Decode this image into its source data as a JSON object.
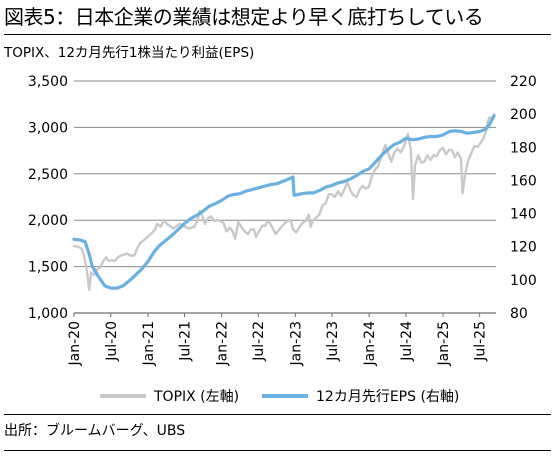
{
  "header": {
    "title": "図表5：日本企業の業績は想定より早く底打ちしている",
    "subtitle": "TOPIX、12カ月先行1株当たり利益(EPS)"
  },
  "footer": {
    "source": "出所：ブルームバーグ、UBS"
  },
  "chart_data": {
    "type": "line",
    "title": "",
    "xlabel": "",
    "ylabel_left": "",
    "ylabel_right": "",
    "x_ticks": [
      "Jan-20",
      "Jul-20",
      "Jan-21",
      "Jul-21",
      "Jan-22",
      "Jul-22",
      "Jan-23",
      "Jul-23",
      "Jan-24",
      "Jul-24",
      "Jan-25",
      "Jul-25"
    ],
    "y_left": {
      "min": 1000,
      "max": 3500,
      "ticks": [
        "1,000",
        "1,500",
        "2,000",
        "2,500",
        "3,000",
        "3,500"
      ]
    },
    "y_right": {
      "min": 80,
      "max": 220,
      "ticks": [
        "80",
        "100",
        "120",
        "140",
        "160",
        "180",
        "200",
        "220"
      ]
    },
    "grid": "horizontal",
    "legend_position": "bottom",
    "series": [
      {
        "name": "TOPIX (左軸)",
        "axis": "left",
        "color": "#c9c9c9",
        "points": [
          [
            "2020-01-01",
            1720
          ],
          [
            "2020-01-20",
            1715
          ],
          [
            "2020-02-10",
            1690
          ],
          [
            "2020-02-25",
            1560
          ],
          [
            "2020-03-05",
            1460
          ],
          [
            "2020-03-16",
            1250
          ],
          [
            "2020-03-26",
            1440
          ],
          [
            "2020-04-10",
            1410
          ],
          [
            "2020-04-25",
            1470
          ],
          [
            "2020-05-10",
            1490
          ],
          [
            "2020-05-25",
            1560
          ],
          [
            "2020-06-08",
            1600
          ],
          [
            "2020-06-20",
            1560
          ],
          [
            "2020-07-05",
            1570
          ],
          [
            "2020-07-20",
            1560
          ],
          [
            "2020-08-05",
            1600
          ],
          [
            "2020-08-20",
            1620
          ],
          [
            "2020-09-05",
            1630
          ],
          [
            "2020-09-20",
            1640
          ],
          [
            "2020-10-05",
            1620
          ],
          [
            "2020-10-25",
            1620
          ],
          [
            "2020-11-10",
            1700
          ],
          [
            "2020-11-25",
            1760
          ],
          [
            "2020-12-15",
            1790
          ],
          [
            "2021-01-05",
            1830
          ],
          [
            "2021-01-20",
            1860
          ],
          [
            "2021-02-05",
            1900
          ],
          [
            "2021-02-16",
            1960
          ],
          [
            "2021-03-05",
            1930
          ],
          [
            "2021-03-20",
            2000
          ],
          [
            "2021-04-05",
            1960
          ],
          [
            "2021-04-20",
            1940
          ],
          [
            "2021-05-05",
            1910
          ],
          [
            "2021-05-20",
            1930
          ],
          [
            "2021-06-05",
            1960
          ],
          [
            "2021-06-20",
            1950
          ],
          [
            "2021-07-05",
            1930
          ],
          [
            "2021-07-20",
            1910
          ],
          [
            "2021-08-05",
            1920
          ],
          [
            "2021-08-20",
            1930
          ],
          [
            "2021-09-05",
            2010
          ],
          [
            "2021-09-14",
            2100
          ],
          [
            "2021-09-30",
            2030
          ],
          [
            "2021-10-10",
            1960
          ],
          [
            "2021-10-25",
            2020
          ],
          [
            "2021-11-10",
            2040
          ],
          [
            "2021-11-25",
            1990
          ],
          [
            "2021-12-10",
            2000
          ],
          [
            "2021-12-25",
            1990
          ],
          [
            "2022-01-10",
            1970
          ],
          [
            "2022-01-25",
            1880
          ],
          [
            "2022-02-10",
            1920
          ],
          [
            "2022-02-25",
            1880
          ],
          [
            "2022-03-08",
            1800
          ],
          [
            "2022-03-25",
            1980
          ],
          [
            "2022-04-10",
            1920
          ],
          [
            "2022-04-25",
            1880
          ],
          [
            "2022-05-12",
            1850
          ],
          [
            "2022-05-25",
            1900
          ],
          [
            "2022-06-10",
            1900
          ],
          [
            "2022-06-20",
            1820
          ],
          [
            "2022-07-05",
            1880
          ],
          [
            "2022-07-20",
            1940
          ],
          [
            "2022-08-05",
            1940
          ],
          [
            "2022-08-18",
            2000
          ],
          [
            "2022-09-05",
            1940
          ],
          [
            "2022-09-25",
            1850
          ],
          [
            "2022-10-10",
            1890
          ],
          [
            "2022-10-25",
            1930
          ],
          [
            "2022-11-10",
            1970
          ],
          [
            "2022-11-25",
            2000
          ],
          [
            "2022-12-10",
            1990
          ],
          [
            "2022-12-20",
            1900
          ],
          [
            "2023-01-05",
            1870
          ],
          [
            "2023-01-20",
            1920
          ],
          [
            "2023-02-05",
            1970
          ],
          [
            "2023-02-20",
            1990
          ],
          [
            "2023-03-08",
            2060
          ],
          [
            "2023-03-17",
            1930
          ],
          [
            "2023-03-31",
            2000
          ],
          [
            "2023-04-15",
            2030
          ],
          [
            "2023-04-30",
            2060
          ],
          [
            "2023-05-15",
            2160
          ],
          [
            "2023-05-31",
            2180
          ],
          [
            "2023-06-15",
            2280
          ],
          [
            "2023-06-30",
            2280
          ],
          [
            "2023-07-15",
            2250
          ],
          [
            "2023-07-31",
            2310
          ],
          [
            "2023-08-15",
            2260
          ],
          [
            "2023-08-31",
            2330
          ],
          [
            "2023-09-15",
            2410
          ],
          [
            "2023-09-30",
            2320
          ],
          [
            "2023-10-15",
            2270
          ],
          [
            "2023-10-31",
            2250
          ],
          [
            "2023-11-15",
            2330
          ],
          [
            "2023-11-30",
            2370
          ],
          [
            "2023-12-15",
            2340
          ],
          [
            "2023-12-31",
            2360
          ],
          [
            "2024-01-15",
            2480
          ],
          [
            "2024-01-31",
            2550
          ],
          [
            "2024-02-15",
            2580
          ],
          [
            "2024-02-29",
            2680
          ],
          [
            "2024-03-10",
            2750
          ],
          [
            "2024-03-22",
            2810
          ],
          [
            "2024-04-05",
            2720
          ],
          [
            "2024-04-19",
            2630
          ],
          [
            "2024-05-05",
            2730
          ],
          [
            "2024-05-20",
            2770
          ],
          [
            "2024-06-05",
            2730
          ],
          [
            "2024-06-20",
            2790
          ],
          [
            "2024-07-05",
            2880
          ],
          [
            "2024-07-11",
            2930
          ],
          [
            "2024-07-25",
            2760
          ],
          [
            "2024-08-05",
            2230
          ],
          [
            "2024-08-15",
            2590
          ],
          [
            "2024-08-31",
            2700
          ],
          [
            "2024-09-15",
            2620
          ],
          [
            "2024-09-30",
            2630
          ],
          [
            "2024-10-15",
            2700
          ],
          [
            "2024-10-31",
            2650
          ],
          [
            "2024-11-15",
            2700
          ],
          [
            "2024-11-30",
            2690
          ],
          [
            "2024-12-15",
            2750
          ],
          [
            "2024-12-31",
            2780
          ],
          [
            "2025-01-15",
            2710
          ],
          [
            "2025-01-31",
            2760
          ],
          [
            "2025-02-15",
            2750
          ],
          [
            "2025-02-28",
            2680
          ],
          [
            "2025-03-15",
            2730
          ],
          [
            "2025-03-31",
            2660
          ],
          [
            "2025-04-07",
            2290
          ],
          [
            "2025-04-20",
            2490
          ],
          [
            "2025-05-05",
            2640
          ],
          [
            "2025-05-20",
            2720
          ],
          [
            "2025-06-05",
            2800
          ],
          [
            "2025-06-20",
            2790
          ],
          [
            "2025-07-05",
            2830
          ],
          [
            "2025-07-20",
            2880
          ],
          [
            "2025-08-01",
            2950
          ],
          [
            "2025-08-10",
            3060
          ],
          [
            "2025-08-20",
            3110
          ],
          [
            "2025-09-01",
            3090
          ],
          [
            "2025-09-10",
            3140
          ]
        ]
      },
      {
        "name": "12カ月先行EPS (右軸)",
        "axis": "right",
        "color": "#6ab0e0",
        "points": [
          [
            "2020-01-01",
            124.5
          ],
          [
            "2020-02-01",
            124.0
          ],
          [
            "2020-02-25",
            123.0
          ],
          [
            "2020-03-15",
            116.0
          ],
          [
            "2020-04-01",
            108.0
          ],
          [
            "2020-05-01",
            102.0
          ],
          [
            "2020-06-01",
            96.5
          ],
          [
            "2020-07-01",
            95.0
          ],
          [
            "2020-08-01",
            95.0
          ],
          [
            "2020-09-01",
            96.5
          ],
          [
            "2020-10-01",
            99.5
          ],
          [
            "2020-11-01",
            103.0
          ],
          [
            "2020-12-01",
            106.5
          ],
          [
            "2021-01-01",
            111.0
          ],
          [
            "2021-02-01",
            117.0
          ],
          [
            "2021-03-01",
            121.0
          ],
          [
            "2021-04-01",
            124.0
          ],
          [
            "2021-05-01",
            127.0
          ],
          [
            "2021-06-01",
            130.5
          ],
          [
            "2021-07-01",
            134.0
          ],
          [
            "2021-08-01",
            137.0
          ],
          [
            "2021-09-01",
            139.0
          ],
          [
            "2021-10-01",
            141.5
          ],
          [
            "2021-11-01",
            144.5
          ],
          [
            "2021-12-01",
            146.0
          ],
          [
            "2022-01-01",
            148.0
          ],
          [
            "2022-02-01",
            150.5
          ],
          [
            "2022-03-01",
            151.5
          ],
          [
            "2022-04-01",
            152.0
          ],
          [
            "2022-05-01",
            153.5
          ],
          [
            "2022-06-01",
            154.5
          ],
          [
            "2022-07-01",
            155.5
          ],
          [
            "2022-08-01",
            156.5
          ],
          [
            "2022-09-01",
            157.5
          ],
          [
            "2022-10-01",
            158.0
          ],
          [
            "2022-11-01",
            159.5
          ],
          [
            "2022-12-01",
            161.0
          ],
          [
            "2022-12-20",
            162.0
          ],
          [
            "2022-12-25",
            151.0
          ],
          [
            "2023-01-15",
            151.5
          ],
          [
            "2023-02-01",
            152.0
          ],
          [
            "2023-03-01",
            152.5
          ],
          [
            "2023-04-01",
            152.5
          ],
          [
            "2023-05-01",
            154.0
          ],
          [
            "2023-06-01",
            156.0
          ],
          [
            "2023-07-01",
            157.0
          ],
          [
            "2023-08-01",
            158.5
          ],
          [
            "2023-09-01",
            159.5
          ],
          [
            "2023-10-01",
            161.0
          ],
          [
            "2023-11-01",
            163.0
          ],
          [
            "2023-12-01",
            165.5
          ],
          [
            "2024-01-01",
            167.0
          ],
          [
            "2024-02-01",
            171.0
          ],
          [
            "2024-03-01",
            175.0
          ],
          [
            "2024-04-01",
            178.5
          ],
          [
            "2024-05-01",
            181.5
          ],
          [
            "2024-06-01",
            183.0
          ],
          [
            "2024-07-01",
            185.5
          ],
          [
            "2024-08-01",
            184.5
          ],
          [
            "2024-09-01",
            185.0
          ],
          [
            "2024-10-01",
            186.0
          ],
          [
            "2024-11-01",
            186.5
          ],
          [
            "2024-12-01",
            186.5
          ],
          [
            "2025-01-01",
            187.5
          ],
          [
            "2025-02-01",
            189.5
          ],
          [
            "2025-03-01",
            190.0
          ],
          [
            "2025-04-01",
            189.5
          ],
          [
            "2025-05-01",
            188.5
          ],
          [
            "2025-06-01",
            189.0
          ],
          [
            "2025-07-01",
            189.5
          ],
          [
            "2025-08-01",
            191.0
          ],
          [
            "2025-08-20",
            194.0
          ],
          [
            "2025-09-10",
            199.0
          ]
        ]
      }
    ]
  }
}
